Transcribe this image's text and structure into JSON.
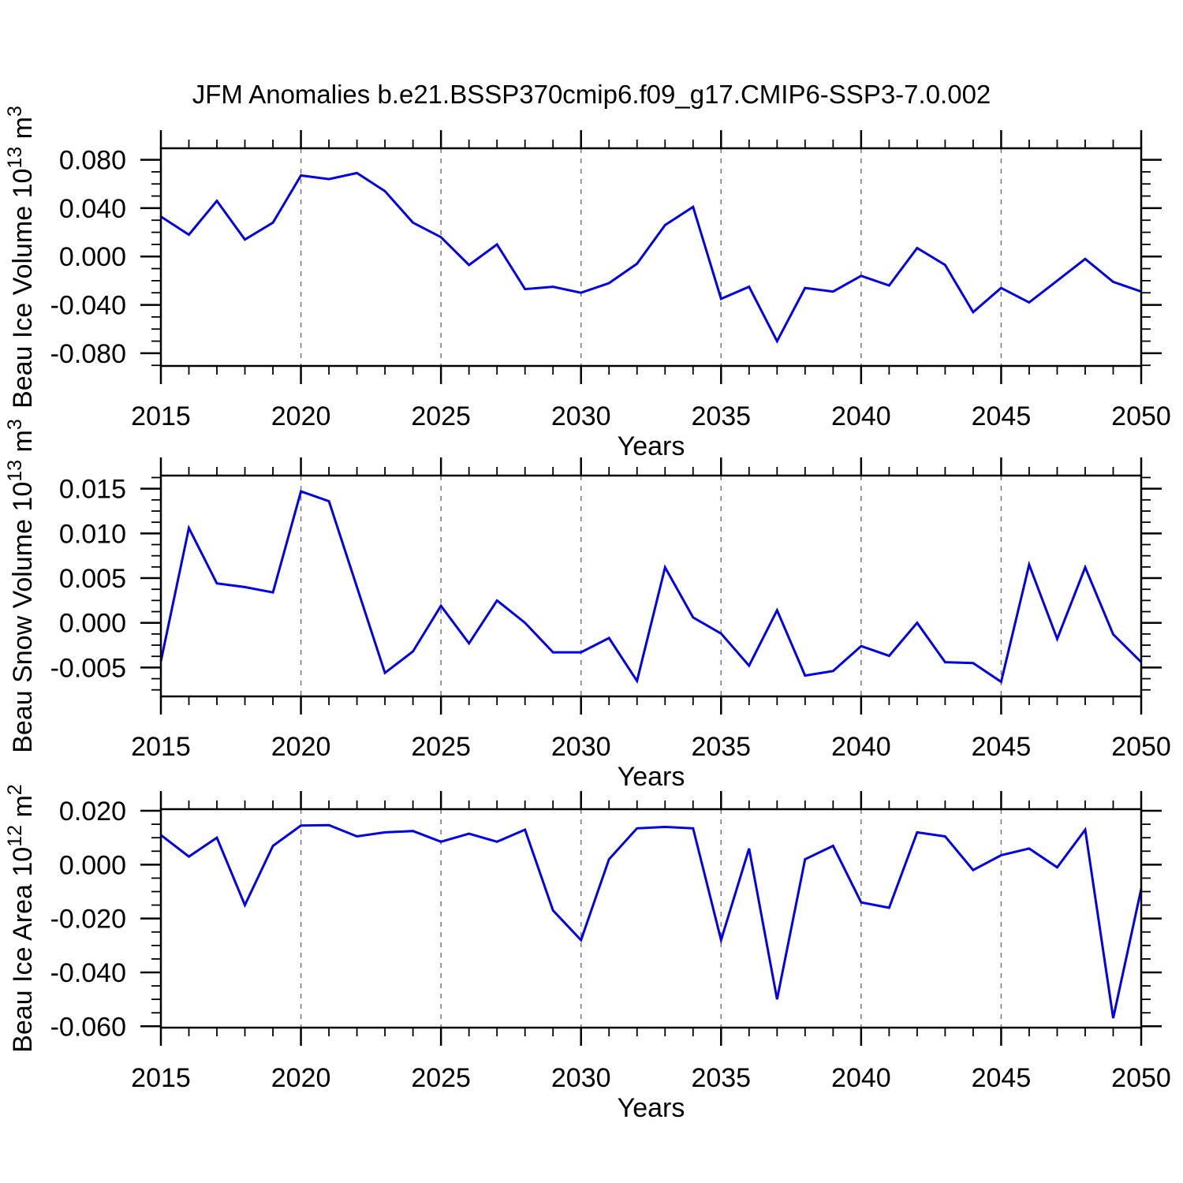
{
  "chart_data": {
    "type": "line",
    "title": "JFM Anomalies b.e21.BSSP370cmip6.f09_g17.CMIP6-SSP3-7.0.002",
    "x_axis_label": "Years",
    "x": [
      2015,
      2016,
      2017,
      2018,
      2019,
      2020,
      2021,
      2022,
      2023,
      2024,
      2025,
      2026,
      2027,
      2028,
      2029,
      2030,
      2031,
      2032,
      2033,
      2034,
      2035,
      2036,
      2037,
      2038,
      2039,
      2040,
      2041,
      2042,
      2043,
      2044,
      2045,
      2046,
      2047,
      2048,
      2049,
      2050
    ],
    "xlim": [
      2015,
      2050
    ],
    "x_ticks_major": [
      2015,
      2020,
      2025,
      2030,
      2035,
      2040,
      2045,
      2050
    ],
    "x_tick_labels": [
      "2015",
      "2020",
      "2025",
      "2030",
      "2035",
      "2040",
      "2045",
      "2050"
    ],
    "x_minor_step": 1,
    "grid_x": [
      2020,
      2025,
      2030,
      2035,
      2040,
      2045
    ],
    "line_color": "#0000EE",
    "grid_color": "#777777",
    "axis_color": "#000000",
    "legend": "none",
    "grid": "vertical-dashed",
    "panels": [
      {
        "id": "ice-volume",
        "ylabel": "Beau Ice Volume 10^13 m^3",
        "ylabel_parts": [
          {
            "t": "Beau Ice Volume 10"
          },
          {
            "t": "13",
            "sup": true
          },
          {
            "t": " m"
          },
          {
            "t": "3",
            "sup": true
          }
        ],
        "ylim": [
          -0.0905,
          0.0895
        ],
        "y_ticks_major": [
          -0.08,
          -0.04,
          0,
          0.04,
          0.08
        ],
        "y_tick_labels": [
          "-0.080",
          "-0.040",
          "0.000",
          "0.040",
          "0.080"
        ],
        "y_minor_step": 0.01,
        "values": [
          0.033,
          0.018,
          0.046,
          0.014,
          0.028,
          0.067,
          0.064,
          0.069,
          0.054,
          0.028,
          0.016,
          -0.007,
          0.01,
          -0.027,
          -0.025,
          -0.03,
          -0.022,
          -0.006,
          0.026,
          0.041,
          -0.035,
          -0.025,
          -0.07,
          -0.026,
          -0.029,
          -0.016,
          -0.024,
          0.007,
          -0.007,
          -0.046,
          -0.026,
          -0.038,
          -0.02,
          -0.002,
          -0.021,
          -0.029
        ]
      },
      {
        "id": "snow-volume",
        "ylabel": "Beau Snow Volume 10^13 m^3",
        "ylabel_parts": [
          {
            "t": "Beau Snow Volume 10"
          },
          {
            "t": "13",
            "sup": true
          },
          {
            "t": " m"
          },
          {
            "t": "3",
            "sup": true
          }
        ],
        "ylim": [
          -0.00823,
          0.01647
        ],
        "y_ticks_major": [
          -0.005,
          0,
          0.005,
          0.01,
          0.015
        ],
        "y_tick_labels": [
          "-0.005",
          "0.000",
          "0.005",
          "0.010",
          "0.015"
        ],
        "y_minor_step": 0.00125,
        "values": [
          -0.0043,
          0.0106,
          0.0044,
          0.004,
          0.0034,
          0.0147,
          0.0136,
          0.004,
          -0.0056,
          -0.0032,
          0.0019,
          -0.0023,
          0.0025,
          0.0,
          -0.0033,
          -0.0033,
          -0.0017,
          -0.0065,
          0.0062,
          0.0006,
          -0.0012,
          -0.0048,
          0.0014,
          -0.0059,
          -0.0054,
          -0.0026,
          -0.0037,
          0.0,
          -0.0044,
          -0.0045,
          -0.0066,
          0.0065,
          -0.0018,
          0.0062,
          -0.0013,
          -0.0044
        ]
      },
      {
        "id": "ice-area",
        "ylabel": "Beau Ice Area 10^12 m^2",
        "ylabel_parts": [
          {
            "t": "Beau Ice Area 10"
          },
          {
            "t": "12",
            "sup": true
          },
          {
            "t": " m"
          },
          {
            "t": "2",
            "sup": true
          }
        ],
        "ylim": [
          -0.0605,
          0.0206
        ],
        "y_ticks_major": [
          -0.06,
          -0.04,
          -0.02,
          0,
          0.02
        ],
        "y_tick_labels": [
          "-0.060",
          "-0.040",
          "-0.020",
          "0.000",
          "0.020"
        ],
        "y_minor_step": 0.005,
        "values": [
          0.011,
          0.003,
          0.01,
          -0.015,
          0.007,
          0.0145,
          0.0147,
          0.0105,
          0.012,
          0.0125,
          0.0085,
          0.0115,
          0.0085,
          0.013,
          -0.017,
          -0.028,
          0.002,
          0.0135,
          0.014,
          0.0135,
          -0.028,
          0.006,
          -0.05,
          0.002,
          0.007,
          -0.014,
          -0.016,
          0.012,
          0.0105,
          -0.002,
          0.0035,
          0.006,
          -0.001,
          0.013,
          -0.057,
          -0.009
        ]
      }
    ]
  }
}
